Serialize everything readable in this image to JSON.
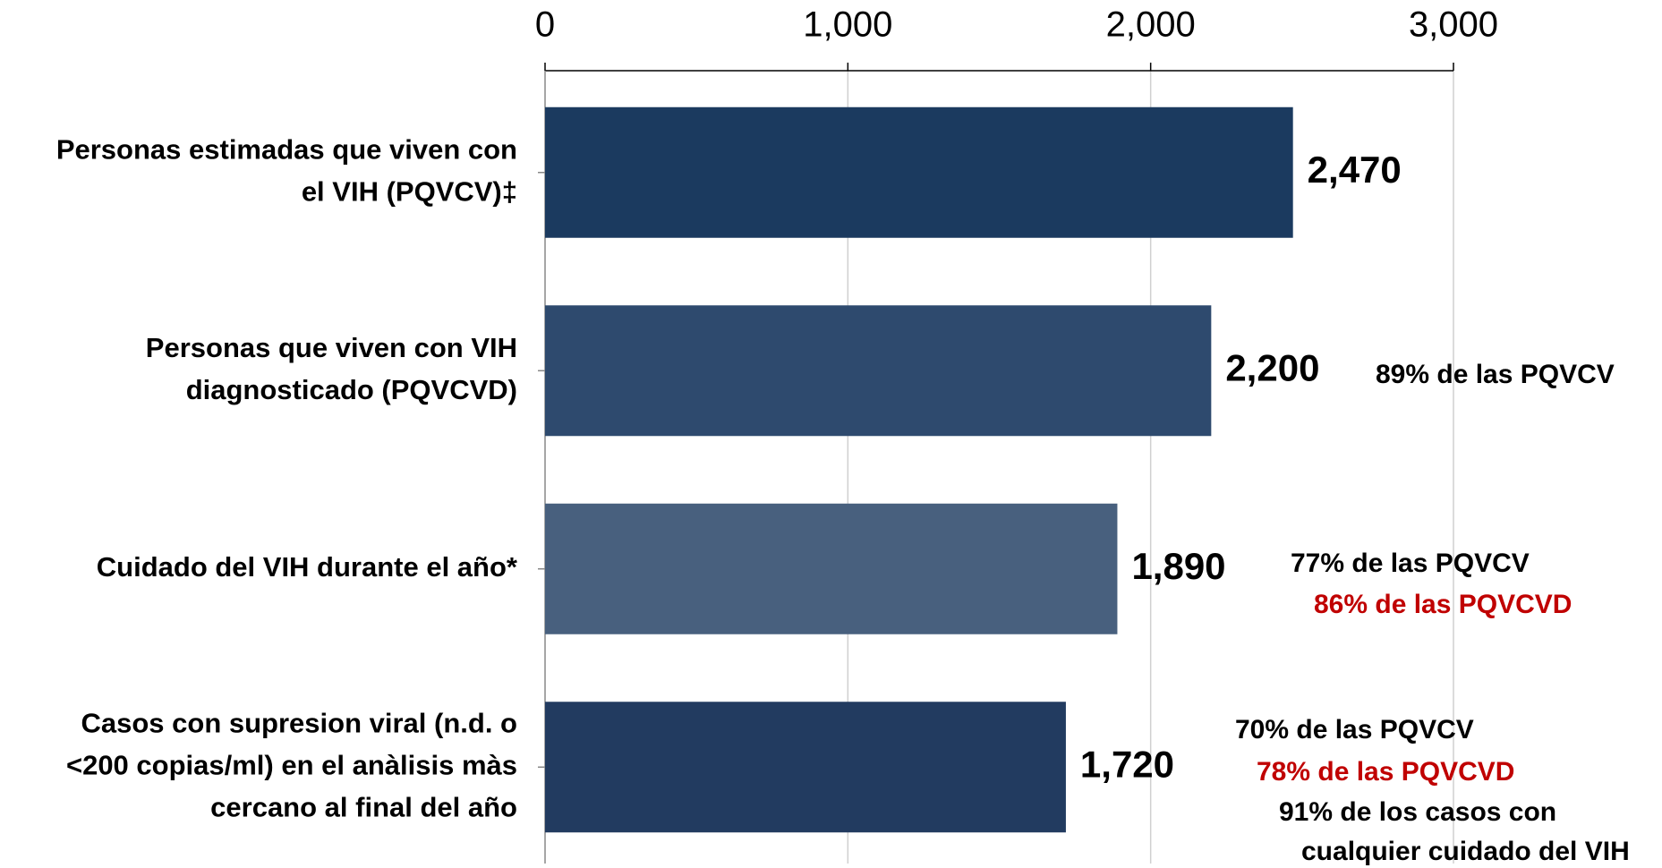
{
  "chart_data": {
    "type": "bar",
    "orientation": "horizontal",
    "categories": [
      [
        "Personas estimadas que viven con",
        "el VIH (PQVCV)‡"
      ],
      [
        "Personas que viven con VIH",
        "diagnosticado (PQVCVD)"
      ],
      [
        "Cuidado del VIH durante el año*"
      ],
      [
        "Casos con supresion viral (n.d. o",
        "<200 copias/ml) en el anàlisis màs",
        "cercano al final del año"
      ]
    ],
    "values": [
      2470,
      2200,
      1890,
      1720
    ],
    "value_labels": [
      "2,470",
      "2,200",
      "1,890",
      "1,720"
    ],
    "colors": [
      "#1b3a5f",
      "#2e4a6e",
      "#48607e",
      "#223b60"
    ],
    "xlim": [
      0,
      3000
    ],
    "xticks": [
      0,
      {
        "value": 1000,
        "label": "1,000"
      },
      {
        "value": 2000,
        "label": "2,000"
      },
      {
        "value": 3000,
        "label": "3,000"
      }
    ],
    "grid": true,
    "annotations": [
      [],
      [
        {
          "text": "89% de las PQVCV",
          "color": "#000000"
        }
      ],
      [
        {
          "text": "77% de las PQVCV",
          "color": "#000000"
        },
        {
          "text": "86% de las PQVCVD",
          "color": "#c00000"
        }
      ],
      [
        {
          "text": "70% de las PQVCV",
          "color": "#000000"
        },
        {
          "text": "78% de las PQVCVD",
          "color": "#c00000"
        },
        {
          "text": "91% de los casos con",
          "color": "#000000"
        },
        {
          "text": "cualquier cuidado del VIH",
          "color": "#000000"
        }
      ]
    ]
  }
}
